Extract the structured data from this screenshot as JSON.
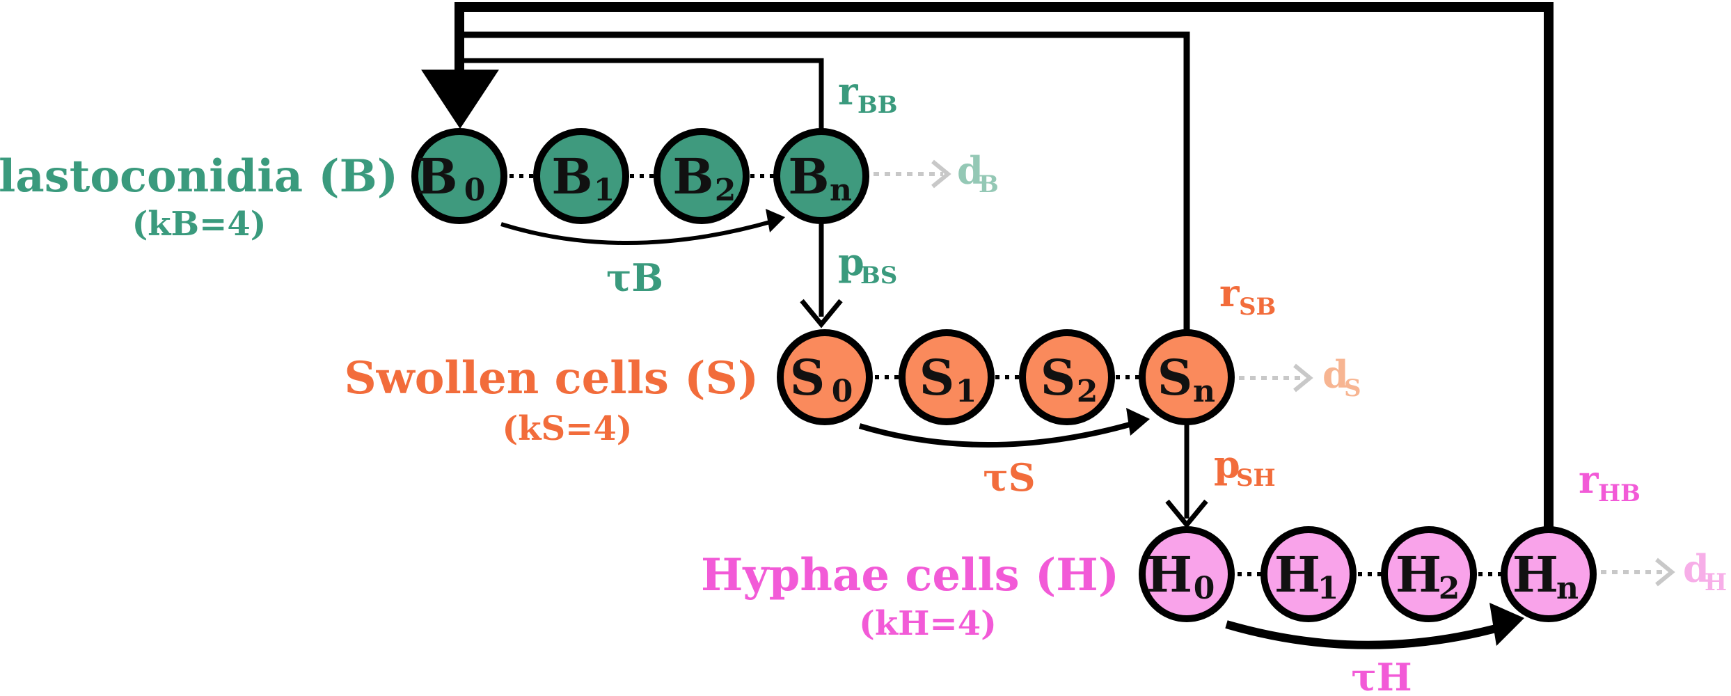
{
  "colors": {
    "blastoconidia": "#3a9a7d",
    "swollen": "#f26c3b",
    "hyphae": "#f25ad7",
    "blastoconidia_fill": "#3f9a7e",
    "swollen_fill": "#fa8a5c",
    "hyphae_fill": "#f9a3ea",
    "death_gray": "#c8c8c8",
    "death_b_text": "#94c8b5",
    "death_s_text": "#f7b592",
    "death_h_text": "#f7aee8",
    "stroke": "#000000"
  },
  "groups": {
    "blastoconidia": {
      "title": "Blastoconidia (B)",
      "k": "(kB=4)",
      "tau": "τB",
      "nodes": [
        {
          "letter": "B",
          "sub": "0"
        },
        {
          "letter": "B",
          "sub": "1"
        },
        {
          "letter": "B",
          "sub": "2"
        },
        {
          "letter": "B",
          "sub": "n"
        }
      ],
      "death": {
        "main": "d",
        "sub": "B"
      }
    },
    "swollen": {
      "title": "Swollen cells (S)",
      "k": "(kS=4)",
      "tau": "τS",
      "nodes": [
        {
          "letter": "S",
          "sub": "0"
        },
        {
          "letter": "S",
          "sub": "1"
        },
        {
          "letter": "S",
          "sub": "2"
        },
        {
          "letter": "S",
          "sub": "n"
        }
      ],
      "death": {
        "main": "d",
        "sub": "S"
      }
    },
    "hyphae": {
      "title": "Hyphae cells (H)",
      "k": "(kH=4)",
      "tau": "τH",
      "nodes": [
        {
          "letter": "H",
          "sub": "0"
        },
        {
          "letter": "H",
          "sub": "1"
        },
        {
          "letter": "H",
          "sub": "2"
        },
        {
          "letter": "H",
          "sub": "n"
        }
      ],
      "death": {
        "main": "d",
        "sub": "H"
      }
    }
  },
  "rates": {
    "r_BB": {
      "main": "r",
      "sub": "BB"
    },
    "p_BS": {
      "main": "p",
      "sub": "BS"
    },
    "r_SB": {
      "main": "r",
      "sub": "SB"
    },
    "p_SH": {
      "main": "p",
      "sub": "SH"
    },
    "r_HB": {
      "main": "r",
      "sub": "HB"
    }
  }
}
